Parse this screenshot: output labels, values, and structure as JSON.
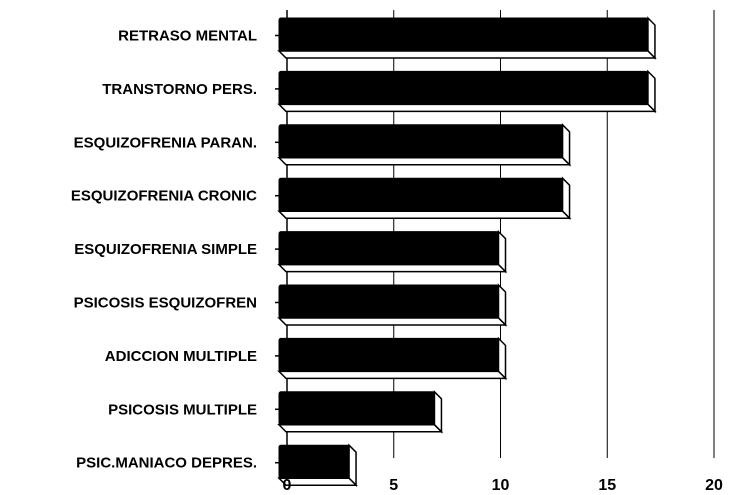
{
  "chart_data": {
    "type": "bar",
    "orientation": "horizontal",
    "categories": [
      "RETRASO MENTAL",
      "TRANSTORNO PERS.",
      "ESQUIZOFRENIA PARAN.",
      "ESQUIZOFRENIA CRONIC",
      "ESQUIZOFRENIA SIMPLE",
      "PSICOSIS ESQUIZOFREN",
      "ADICCION MULTIPLE",
      "PSICOSIS MULTIPLE",
      "PSIC.MANIACO DEPRES."
    ],
    "values": [
      17,
      17,
      13,
      13,
      10,
      10,
      10,
      7,
      3
    ],
    "xlim": [
      0,
      20
    ],
    "xticks": [
      0,
      5,
      10,
      15,
      20
    ],
    "title": "",
    "xlabel": "",
    "ylabel": "",
    "grid": "vertical",
    "bar_color": "#000000"
  }
}
